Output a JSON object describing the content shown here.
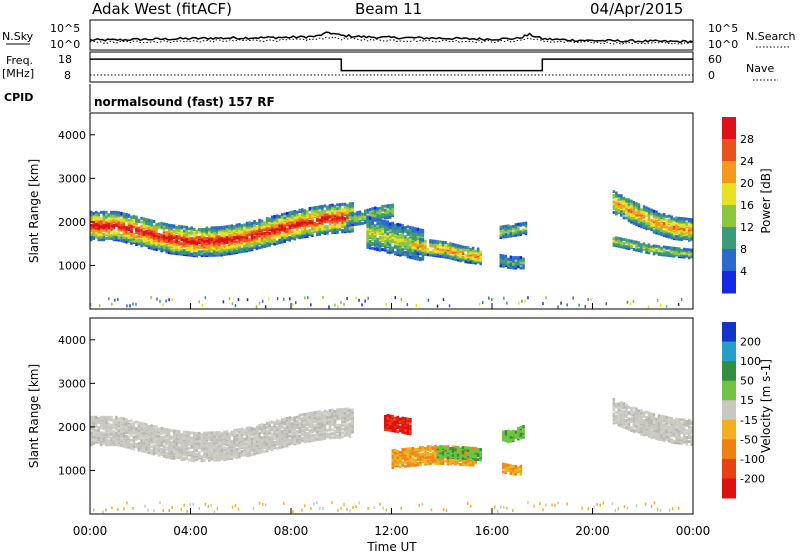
{
  "header": {
    "title": "Adak West (fitACF)",
    "beam": "Beam 11",
    "date": "04/Apr/2015"
  },
  "panels": {
    "nsky_label": "N.Sky",
    "nsearch_label": "N.Search",
    "count_ticks": [
      "10^5",
      "10^0"
    ],
    "freq_label": "Freq.",
    "freq_unit": "[MHz]",
    "freq_ticks": [
      "18",
      "8"
    ],
    "nave_label": "Nave",
    "nave_ticks": [
      "60",
      "0"
    ],
    "cpid_label": "CPID",
    "cpid_text": "normalsound (fast) 157 RF"
  },
  "chart_data": [
    {
      "type": "line",
      "name": "noise",
      "x_hours": [
        0,
        1,
        2,
        3,
        4,
        5,
        6,
        7,
        8,
        9,
        9.5,
        10,
        11,
        12,
        13,
        14,
        15,
        16,
        17,
        17.5,
        18,
        19,
        20,
        21,
        22,
        23,
        24
      ],
      "nsky_level": [
        0.3,
        0.3,
        0.32,
        0.33,
        0.35,
        0.36,
        0.37,
        0.38,
        0.39,
        0.42,
        0.55,
        0.45,
        0.4,
        0.38,
        0.37,
        0.36,
        0.34,
        0.33,
        0.35,
        0.48,
        0.34,
        0.3,
        0.28,
        0.27,
        0.26,
        0.25,
        0.25
      ],
      "nsearch_level": [
        0.22,
        0.22,
        0.24,
        0.25,
        0.26,
        0.27,
        0.28,
        0.29,
        0.3,
        0.32,
        0.4,
        0.34,
        0.31,
        0.29,
        0.28,
        0.27,
        0.26,
        0.25,
        0.27,
        0.36,
        0.26,
        0.23,
        0.21,
        0.2,
        0.2,
        0.19,
        0.19
      ]
    },
    {
      "type": "line",
      "name": "frequency",
      "x_hours": [
        0,
        10,
        10,
        18,
        18,
        24
      ],
      "freq_mhz": [
        15.5,
        15.5,
        10.5,
        10.5,
        15.5,
        15.5
      ],
      "nave_level": 12
    },
    {
      "type": "heatmap",
      "name": "power",
      "xlabel": "Time UT",
      "ylabel": "Slant Range [km]",
      "xlim": [
        0,
        24
      ],
      "ylim": [
        0,
        4500
      ],
      "x_ticks": [
        "00:00",
        "04:00",
        "08:00",
        "12:00",
        "16:00",
        "20:00",
        "00:00"
      ],
      "y_ticks": [
        1000,
        2000,
        3000,
        4000
      ],
      "colorbar_label": "Power [dB]",
      "colorbar_ticks": [
        4,
        8,
        12,
        16,
        20,
        24,
        28
      ],
      "colorbar_colors": [
        "#1428e6",
        "#2b6acd",
        "#3b9a78",
        "#8cc63f",
        "#e8e020",
        "#f39a1b",
        "#e9501a",
        "#e0101a"
      ],
      "regions": [
        {
          "t": [
            0,
            10.4
          ],
          "center_km": [
            1950,
            1950,
            1800,
            1650,
            1580,
            1600,
            1700,
            1850,
            2000,
            2100,
            2150
          ],
          "width_km": 650,
          "level": 2.2
        },
        {
          "t": [
            10.2,
            12.0
          ],
          "center_km": [
            2100,
            2150,
            2250,
            2300
          ],
          "width_km": 300,
          "level": 0.8
        },
        {
          "t": [
            11.0,
            13.2
          ],
          "center_km": [
            1800,
            1700,
            1600,
            1500
          ],
          "width_km": 700,
          "level": 1.0
        },
        {
          "t": [
            12.8,
            15.5
          ],
          "center_km": [
            1500,
            1450,
            1400,
            1300,
            1250
          ],
          "width_km": 350,
          "level": 1.6
        },
        {
          "t": [
            16.3,
            17.4
          ],
          "center_km": [
            1800,
            1850,
            1900
          ],
          "width_km": 250,
          "level": 0.9
        },
        {
          "t": [
            16.3,
            17.3
          ],
          "center_km": [
            1150,
            1100,
            1100
          ],
          "width_km": 250,
          "level": 0.6
        },
        {
          "t": [
            20.8,
            24
          ],
          "center_km": [
            2500,
            2250,
            2050,
            1900,
            1850
          ],
          "width_km": 500,
          "level": 1.6
        },
        {
          "t": [
            20.8,
            24
          ],
          "center_km": [
            1600,
            1500,
            1400,
            1350,
            1300
          ],
          "width_km": 200,
          "level": 1.0
        }
      ]
    },
    {
      "type": "heatmap",
      "name": "velocity",
      "xlabel": "Time UT",
      "ylabel": "Slant Range [km]",
      "xlim": [
        0,
        24
      ],
      "ylim": [
        0,
        4500
      ],
      "x_ticks": [
        "00:00",
        "04:00",
        "08:00",
        "12:00",
        "16:00",
        "20:00",
        "00:00"
      ],
      "y_ticks": [
        1000,
        2000,
        3000,
        4000
      ],
      "colorbar_label": "Velocity [m s-1]",
      "colorbar_ticks": [
        200,
        100,
        50,
        15,
        -15,
        -50,
        -100,
        -200
      ],
      "colorbar_colors": [
        "#1433c8",
        "#22a0c8",
        "#2f8f3f",
        "#6fc341",
        "#c8c8c0",
        "#f0b020",
        "#f08010",
        "#e84010",
        "#e01010"
      ],
      "regions": [
        {
          "t": [
            0,
            10.4
          ],
          "center_km": [
            1950,
            1950,
            1800,
            1650,
            1580,
            1600,
            1700,
            1850,
            2000,
            2100,
            2150
          ],
          "width_km": 650,
          "vel": "grey"
        },
        {
          "t": [
            11.7,
            12.7
          ],
          "center_km": [
            2150,
            2100,
            2050
          ],
          "width_km": 350,
          "vel": "red"
        },
        {
          "t": [
            12.0,
            15.3
          ],
          "center_km": [
            1300,
            1350,
            1400,
            1380,
            1350
          ],
          "width_km": 400,
          "vel": "orange"
        },
        {
          "t": [
            13.8,
            15.5
          ],
          "center_km": [
            1450,
            1450,
            1400
          ],
          "width_km": 250,
          "vel": "green"
        },
        {
          "t": [
            16.4,
            17.3
          ],
          "center_km": [
            1800,
            1850,
            1950
          ],
          "width_km": 250,
          "vel": "green"
        },
        {
          "t": [
            16.4,
            17.2
          ],
          "center_km": [
            1100,
            1050,
            1050
          ],
          "width_km": 200,
          "vel": "orange"
        },
        {
          "t": [
            20.8,
            24
          ],
          "center_km": [
            2400,
            2200,
            2050,
            1950,
            1900
          ],
          "width_km": 550,
          "vel": "grey"
        }
      ]
    }
  ]
}
